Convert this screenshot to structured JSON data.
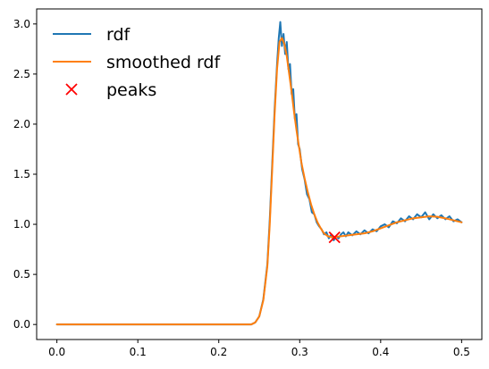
{
  "chart_data": {
    "type": "line",
    "title": "",
    "xlabel": "",
    "ylabel": "",
    "xlim": [
      -0.025,
      0.525
    ],
    "ylim": [
      -0.15,
      3.15
    ],
    "grid": false,
    "legend_position": "top-left",
    "x_ticks": [
      {
        "value": 0.0,
        "label": "0.0"
      },
      {
        "value": 0.1,
        "label": "0.1"
      },
      {
        "value": 0.2,
        "label": "0.2"
      },
      {
        "value": 0.3,
        "label": "0.3"
      },
      {
        "value": 0.4,
        "label": "0.4"
      },
      {
        "value": 0.5,
        "label": "0.5"
      }
    ],
    "y_ticks": [
      {
        "value": 0.0,
        "label": "0.0"
      },
      {
        "value": 0.5,
        "label": "0.5"
      },
      {
        "value": 1.0,
        "label": "1.0"
      },
      {
        "value": 1.5,
        "label": "1.5"
      },
      {
        "value": 2.0,
        "label": "2.0"
      },
      {
        "value": 2.5,
        "label": "2.5"
      },
      {
        "value": 3.0,
        "label": "3.0"
      }
    ],
    "series": [
      {
        "name": "rdf",
        "kind": "line",
        "color": "#1f77b4",
        "x": [
          0.0,
          0.05,
          0.1,
          0.15,
          0.2,
          0.24,
          0.245,
          0.25,
          0.255,
          0.26,
          0.263,
          0.266,
          0.269,
          0.272,
          0.274,
          0.276,
          0.278,
          0.28,
          0.282,
          0.284,
          0.286,
          0.288,
          0.29,
          0.292,
          0.294,
          0.296,
          0.298,
          0.3,
          0.303,
          0.306,
          0.309,
          0.312,
          0.315,
          0.318,
          0.321,
          0.324,
          0.327,
          0.33,
          0.333,
          0.336,
          0.339,
          0.342,
          0.345,
          0.348,
          0.351,
          0.354,
          0.357,
          0.36,
          0.365,
          0.37,
          0.375,
          0.38,
          0.385,
          0.39,
          0.395,
          0.4,
          0.405,
          0.41,
          0.415,
          0.42,
          0.425,
          0.43,
          0.435,
          0.44,
          0.445,
          0.45,
          0.455,
          0.46,
          0.465,
          0.47,
          0.475,
          0.48,
          0.485,
          0.49,
          0.495,
          0.5
        ],
        "y": [
          0.0,
          0.0,
          0.0,
          0.0,
          0.0,
          0.0,
          0.02,
          0.08,
          0.25,
          0.6,
          1.05,
          1.6,
          2.15,
          2.6,
          2.85,
          3.02,
          2.78,
          2.9,
          2.7,
          2.82,
          2.55,
          2.6,
          2.3,
          2.35,
          2.05,
          2.1,
          1.8,
          1.75,
          1.55,
          1.45,
          1.3,
          1.25,
          1.12,
          1.1,
          1.02,
          0.98,
          0.95,
          0.9,
          0.92,
          0.86,
          0.9,
          0.84,
          0.88,
          0.86,
          0.9,
          0.92,
          0.88,
          0.92,
          0.89,
          0.93,
          0.9,
          0.94,
          0.91,
          0.95,
          0.93,
          0.98,
          1.0,
          0.97,
          1.03,
          1.01,
          1.06,
          1.03,
          1.08,
          1.05,
          1.1,
          1.07,
          1.12,
          1.05,
          1.1,
          1.06,
          1.09,
          1.05,
          1.08,
          1.03,
          1.05,
          1.02
        ]
      },
      {
        "name": "smoothed rdf",
        "kind": "line",
        "color": "#ff7f0e",
        "x": [
          0.0,
          0.05,
          0.1,
          0.15,
          0.2,
          0.24,
          0.245,
          0.25,
          0.255,
          0.26,
          0.263,
          0.266,
          0.269,
          0.272,
          0.275,
          0.278,
          0.281,
          0.284,
          0.287,
          0.29,
          0.293,
          0.296,
          0.299,
          0.302,
          0.306,
          0.31,
          0.314,
          0.318,
          0.322,
          0.326,
          0.33,
          0.335,
          0.34,
          0.345,
          0.35,
          0.36,
          0.37,
          0.38,
          0.39,
          0.4,
          0.41,
          0.42,
          0.43,
          0.44,
          0.45,
          0.46,
          0.47,
          0.48,
          0.49,
          0.5
        ],
        "y": [
          0.0,
          0.0,
          0.0,
          0.0,
          0.0,
          0.0,
          0.02,
          0.08,
          0.24,
          0.58,
          1.0,
          1.55,
          2.1,
          2.55,
          2.82,
          2.86,
          2.8,
          2.68,
          2.5,
          2.32,
          2.12,
          1.94,
          1.78,
          1.62,
          1.46,
          1.32,
          1.2,
          1.1,
          1.02,
          0.96,
          0.91,
          0.88,
          0.87,
          0.875,
          0.88,
          0.89,
          0.9,
          0.91,
          0.93,
          0.96,
          0.99,
          1.02,
          1.04,
          1.06,
          1.07,
          1.08,
          1.075,
          1.06,
          1.04,
          1.02
        ]
      },
      {
        "name": "peaks",
        "kind": "scatter",
        "marker": "x",
        "color": "#ff0000",
        "points": [
          {
            "x": 0.343,
            "y": 0.87
          }
        ]
      }
    ]
  }
}
